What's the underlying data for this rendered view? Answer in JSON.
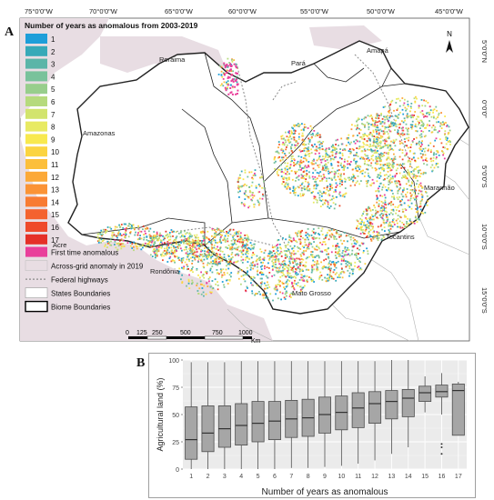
{
  "panel_a": {
    "label": "A",
    "map_title": "Number of years as anomalous from 2003-2019",
    "lon_ticks": [
      "75°0'0\"W",
      "70°0'0\"W",
      "65°0'0\"W",
      "60°0'0\"W",
      "55°0'0\"W",
      "50°0'0\"W",
      "45°0'0\"W"
    ],
    "lat_ticks": [
      "5°0'0\"N",
      "0°0'0\"",
      "5°0'0\"S",
      "10°0'0\"S",
      "15°0'0\"S"
    ],
    "north_arrow": "N",
    "scale_bar": {
      "ticks": [
        "0",
        "125",
        "250",
        "500",
        "750",
        "1000"
      ],
      "unit": "Km"
    },
    "state_labels": [
      "Roraima",
      "Pará",
      "Amapá",
      "Amazonas",
      "Maranhão",
      "Acre",
      "Rondônia",
      "Tocantins",
      "Mato Grosso"
    ],
    "legend_years": [
      {
        "label": "1",
        "color": "#1e9ed9"
      },
      {
        "label": "2",
        "color": "#37a9b8"
      },
      {
        "label": "3",
        "color": "#5bb5a8"
      },
      {
        "label": "4",
        "color": "#79c29b"
      },
      {
        "label": "5",
        "color": "#98ce8c"
      },
      {
        "label": "6",
        "color": "#b6da7d"
      },
      {
        "label": "7",
        "color": "#d2e46d"
      },
      {
        "label": "8",
        "color": "#e8ea62"
      },
      {
        "label": "9",
        "color": "#f8e94f"
      },
      {
        "label": "10",
        "color": "#fbd441"
      },
      {
        "label": "11",
        "color": "#fcbf3b"
      },
      {
        "label": "12",
        "color": "#fca938"
      },
      {
        "label": "13",
        "color": "#fb9336"
      },
      {
        "label": "14",
        "color": "#f87b33"
      },
      {
        "label": "15",
        "color": "#f4622f"
      },
      {
        "label": "16",
        "color": "#ef4a2b"
      },
      {
        "label": "17",
        "color": "#e53028"
      }
    ],
    "legend_other": [
      {
        "label": "First time anomalous",
        "color": "#e93f9b",
        "kind": "fill"
      },
      {
        "label": "Across-grid anomaly in 2019",
        "color": "#e8dde3",
        "kind": "fill"
      },
      {
        "label": "Federal highways",
        "color": "#8a8a8a",
        "kind": "dotted"
      },
      {
        "label": "States Boundaries",
        "color": "#ffffff",
        "kind": "thin"
      },
      {
        "label": "Biome Boundaries",
        "color": "#ffffff",
        "kind": "thick"
      }
    ]
  },
  "panel_b": {
    "label": "B",
    "chart_data": {
      "type": "box",
      "xlabel": "Number of years as anomalous",
      "ylabel": "Agricultural land (%)",
      "categories": [
        "1",
        "2",
        "3",
        "4",
        "5",
        "6",
        "7",
        "8",
        "9",
        "10",
        "11",
        "12",
        "13",
        "14",
        "15",
        "16",
        "17"
      ],
      "ylim": [
        0,
        100
      ],
      "yticks": [
        0,
        25,
        50,
        75,
        100
      ],
      "grid": true,
      "boxes": [
        {
          "whisker_low": 0,
          "q1": 9,
          "median": 27,
          "q3": 57,
          "whisker_high": 98
        },
        {
          "whisker_low": 0,
          "q1": 16,
          "median": 33,
          "q3": 58,
          "whisker_high": 98
        },
        {
          "whisker_low": 0,
          "q1": 20,
          "median": 37,
          "q3": 58,
          "whisker_high": 98
        },
        {
          "whisker_low": 0,
          "q1": 22,
          "median": 40,
          "q3": 60,
          "whisker_high": 99
        },
        {
          "whisker_low": 0,
          "q1": 25,
          "median": 42,
          "q3": 62,
          "whisker_high": 99
        },
        {
          "whisker_low": 0,
          "q1": 27,
          "median": 44,
          "q3": 62,
          "whisker_high": 99
        },
        {
          "whisker_low": 1,
          "q1": 29,
          "median": 46,
          "q3": 63,
          "whisker_high": 99
        },
        {
          "whisker_low": 1,
          "q1": 30,
          "median": 47,
          "q3": 64,
          "whisker_high": 99
        },
        {
          "whisker_low": 2,
          "q1": 33,
          "median": 50,
          "q3": 66,
          "whisker_high": 99
        },
        {
          "whisker_low": 3,
          "q1": 36,
          "median": 52,
          "q3": 67,
          "whisker_high": 99
        },
        {
          "whisker_low": 5,
          "q1": 38,
          "median": 56,
          "q3": 70,
          "whisker_high": 99
        },
        {
          "whisker_low": 8,
          "q1": 42,
          "median": 60,
          "q3": 71,
          "whisker_high": 99
        },
        {
          "whisker_low": 14,
          "q1": 46,
          "median": 62,
          "q3": 72,
          "whisker_high": 100
        },
        {
          "whisker_low": 20,
          "q1": 48,
          "median": 65,
          "q3": 73,
          "whisker_high": 100
        },
        {
          "whisker_low": 52,
          "q1": 62,
          "median": 70,
          "q3": 76,
          "whisker_high": 85
        },
        {
          "whisker_low": 50,
          "q1": 66,
          "median": 71,
          "q3": 77,
          "whisker_high": 88
        },
        {
          "whisker_low": 31,
          "q1": 31,
          "median": 72,
          "q3": 78,
          "whisker_high": 80
        }
      ],
      "outliers": [
        {
          "category": "16",
          "values": [
            23,
            20,
            14
          ]
        }
      ]
    }
  }
}
